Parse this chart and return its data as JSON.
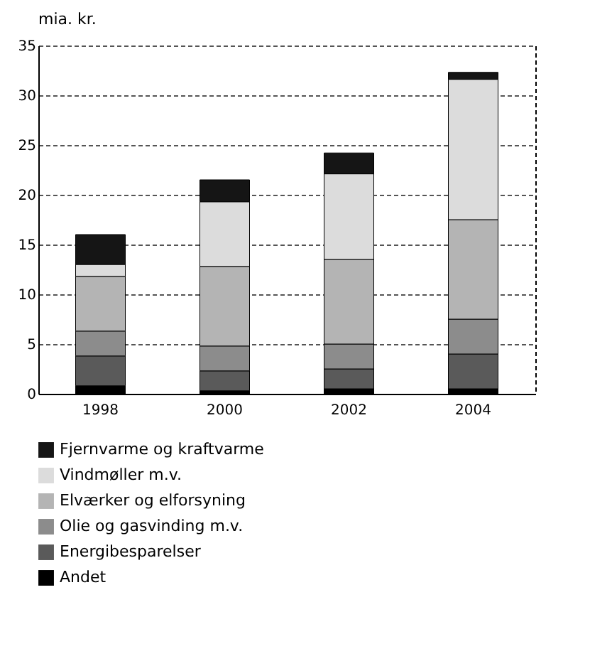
{
  "chart_data": {
    "type": "bar",
    "stacked": true,
    "ylabel": "mia. kr.",
    "categories": [
      "1998",
      "2000",
      "2002",
      "2004"
    ],
    "series": [
      {
        "name": "Andet",
        "color": "#000000",
        "values": [
          0.8,
          0.3,
          0.5,
          0.5
        ]
      },
      {
        "name": "Energibesparelser",
        "color": "#5a5a5a",
        "values": [
          3,
          2,
          2,
          3.5
        ]
      },
      {
        "name": "Olie og gasvinding m.v.",
        "color": "#8c8c8c",
        "values": [
          2.5,
          2.5,
          2.5,
          3.5
        ]
      },
      {
        "name": "Elværker og elforsyning",
        "color": "#b4b4b4",
        "values": [
          5.5,
          8,
          8.5,
          10
        ]
      },
      {
        "name": "Vindmøller m.v.",
        "color": "#dcdcdc",
        "values": [
          1.2,
          6.5,
          8.6,
          14.1
        ]
      },
      {
        "name": "Fjernvarme og kraftvarme",
        "color": "#151515",
        "values": [
          3,
          2.2,
          2.1,
          0.7
        ]
      }
    ],
    "ylim": [
      0,
      35
    ],
    "yticks": [
      0,
      5,
      10,
      15,
      20,
      25,
      30,
      35
    ],
    "grid": "y",
    "legend": "bottom"
  }
}
